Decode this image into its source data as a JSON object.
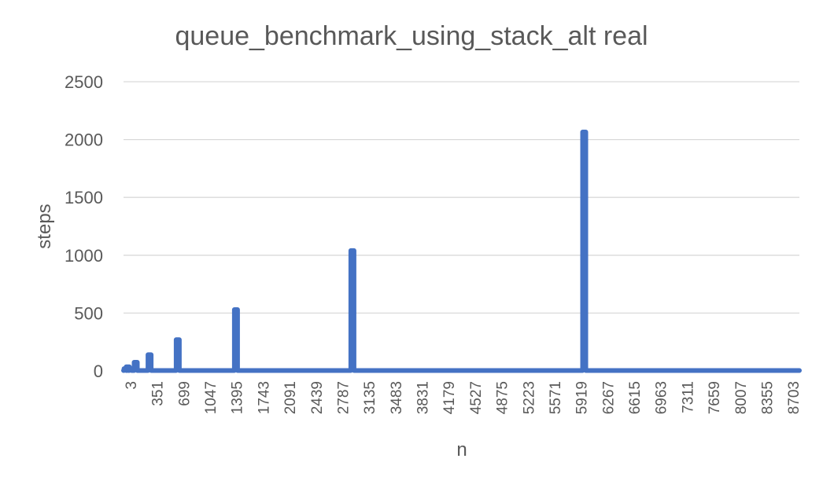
{
  "chart_data": {
    "type": "line",
    "title": "queue_benchmark_using_stack_alt real",
    "xlabel": "n",
    "ylabel": "steps",
    "ylim": [
      0,
      2500
    ],
    "yticks": [
      0,
      500,
      1000,
      1500,
      2000,
      2500
    ],
    "x_range": [
      3,
      9000
    ],
    "xtick_labels": [
      "3",
      "351",
      "699",
      "1047",
      "1395",
      "1743",
      "2091",
      "2439",
      "2787",
      "3135",
      "3483",
      "3831",
      "4179",
      "4527",
      "4875",
      "5223",
      "5571",
      "5919",
      "6267",
      "6615",
      "6963",
      "7311",
      "7659",
      "8007",
      "8355",
      "8703"
    ],
    "grid": true,
    "legend": "none",
    "color": "#4472c4",
    "baseline_value": 10,
    "spikes": [
      {
        "n": 30,
        "steps": 20
      },
      {
        "n": 60,
        "steps": 35
      },
      {
        "n": 90,
        "steps": 20
      },
      {
        "n": 165,
        "steps": 75
      },
      {
        "n": 350,
        "steps": 140
      },
      {
        "n": 725,
        "steps": 270
      },
      {
        "n": 1500,
        "steps": 530
      },
      {
        "n": 3050,
        "steps": 1040
      },
      {
        "n": 6135,
        "steps": 2065
      }
    ]
  }
}
